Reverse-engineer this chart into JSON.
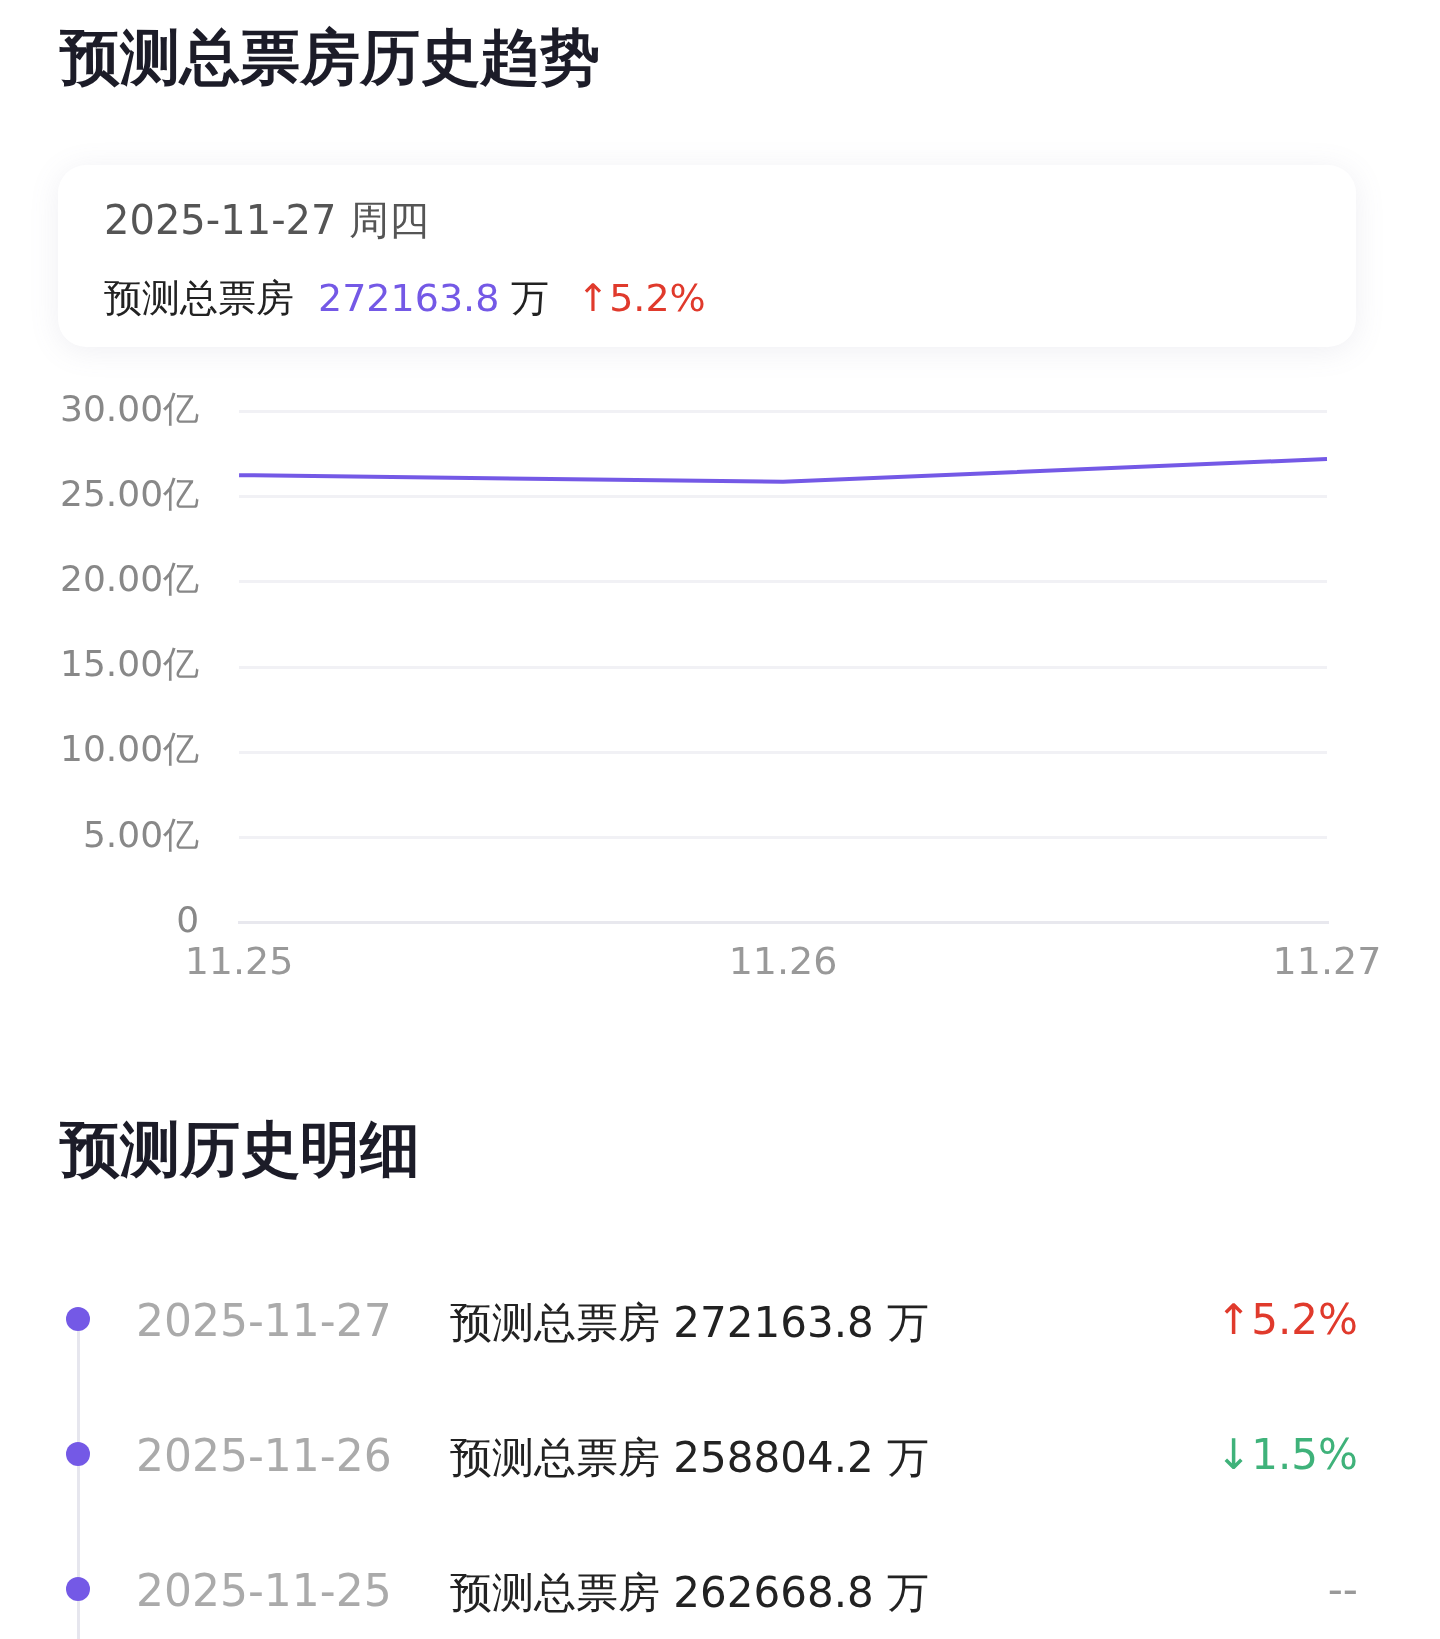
{
  "chart_data": {
    "type": "line",
    "title": "预测总票房历史趋势",
    "categories": [
      "11.25",
      "11.26",
      "11.27"
    ],
    "series": [
      {
        "color": "#7459e6",
        "values": [
          26.26688,
          25.88042,
          27.21638
        ]
      }
    ],
    "ylim": [
      0,
      30
    ],
    "yticks": [
      0,
      {
        "value": 5,
        "label": "5.00亿"
      },
      {
        "value": 10,
        "label": "10.00亿"
      },
      {
        "value": 15,
        "label": "15.00亿"
      },
      {
        "value": 20,
        "label": "20.00亿"
      },
      {
        "value": 25,
        "label": "25.00亿"
      },
      {
        "value": 30,
        "label": "30.00亿"
      }
    ],
    "grid": "y",
    "legend": false,
    "marker": "none",
    "line_style": "solid",
    "annotations": [
      "2025-11-27  周四",
      "预测总票房",
      "272163.8",
      "万",
      "↑5.2%",
      "预测历史明细",
      "2025-11-27",
      "预测总票房 272163.8 万",
      "↑5.2%",
      "2025-11-26",
      "预测总票房 258804.2 万",
      "↓1.5%",
      "2025-11-25",
      "预测总票房 262668.8 万",
      "--"
    ]
  }
}
